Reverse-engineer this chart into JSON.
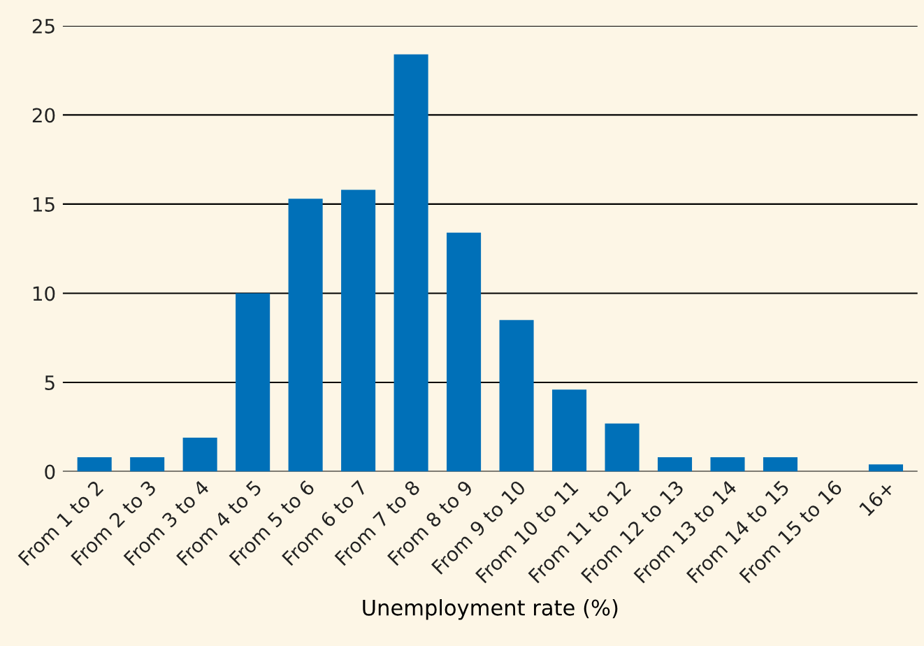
{
  "chart_data": {
    "type": "bar",
    "xlabel": "Unemployment rate (%)",
    "categories": [
      "From 1 to 2",
      "From 2 to 3",
      "From 3 to 4",
      "From 4 to 5",
      "From 5 to 6",
      "From 6 to 7",
      "From 7 to 8",
      "From 8 to 9",
      "From 9 to 10",
      "From 10 to 11",
      "From 11 to 12",
      "From 12 to 13",
      "From 13 to 14",
      "From 14 to 15",
      "From 15 to 16",
      "16+"
    ],
    "values": [
      0.8,
      0.8,
      1.9,
      10.0,
      15.3,
      15.8,
      23.4,
      13.4,
      8.5,
      4.6,
      2.7,
      0.8,
      0.8,
      0.8,
      0,
      0.4
    ],
    "color": "#0070b8",
    "ylim": [
      0,
      25
    ],
    "yticks": [
      0,
      5,
      10,
      15,
      20,
      25
    ],
    "grid": "y",
    "legend": false
  }
}
